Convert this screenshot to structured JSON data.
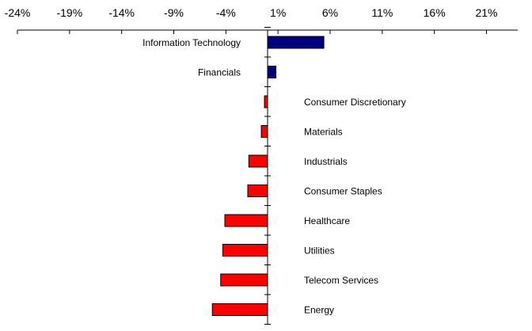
{
  "chart_data": {
    "type": "bar",
    "orientation": "horizontal",
    "title": "",
    "xlabel": "",
    "ylabel": "",
    "xlim": [
      -24,
      24
    ],
    "x_ticks": [
      -24,
      -19,
      -14,
      -9,
      -4,
      1,
      6,
      11,
      16,
      21
    ],
    "x_tick_labels": [
      "-24%",
      "-19%",
      "-14%",
      "-9%",
      "-4%",
      "1%",
      "6%",
      "11%",
      "16%",
      "21%"
    ],
    "x_axis_position": "top",
    "grid": false,
    "legend": "none",
    "categories": [
      "Information Technology",
      "Financials",
      "Consumer Discretionary",
      "Materials",
      "Industrials",
      "Consumer Staples",
      "Healthcare",
      "Utilities",
      "Telecom Services",
      "Energy"
    ],
    "values": [
      5.4,
      0.8,
      -0.3,
      -0.6,
      -1.8,
      -1.9,
      -4.1,
      -4.3,
      -4.5,
      -5.3
    ],
    "colors": {
      "positive": "#000080",
      "negative": "#ff0000",
      "axis": "#000000"
    }
  }
}
